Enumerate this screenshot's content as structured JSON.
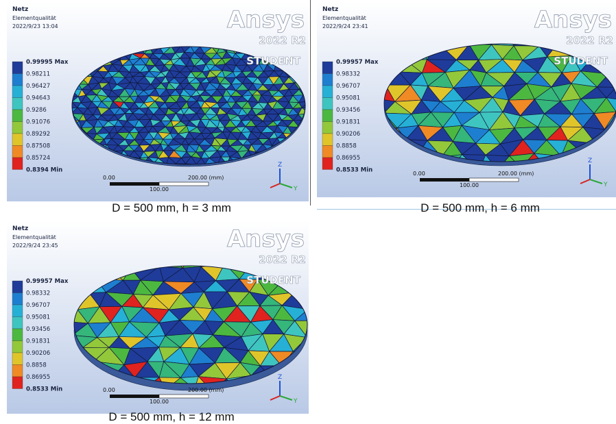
{
  "panels": [
    {
      "title": "Netz",
      "subtitle": "Elementqualität",
      "date": "2022/9/23 13:04",
      "logo": "Ansys",
      "version": "2022 R2",
      "edition": "STUDENT",
      "legend": [
        "0.99995 Max",
        "0.98211",
        "0.96427",
        "0.94643",
        "0.9286",
        "0.91076",
        "0.89292",
        "0.87508",
        "0.85724",
        "0.8394 Min"
      ],
      "scale": {
        "start": "0.00",
        "end": "200.00 (mm)",
        "mid": "100.00"
      },
      "axes": {
        "z": "Z",
        "y": "Y"
      },
      "caption": "D = 500 mm, h = 3 mm"
    },
    {
      "title": "Netz",
      "subtitle": "Elementqualität",
      "date": "2022/9/24 23:41",
      "logo": "Ansys",
      "version": "2022 R2",
      "edition": "STUDENT",
      "legend": [
        "0.99957 Max",
        "0.98332",
        "0.96707",
        "0.95081",
        "0.93456",
        "0.91831",
        "0.90206",
        "0.8858",
        "0.86955",
        "0.8533 Min"
      ],
      "scale": {
        "start": "0.00",
        "end": "200.00 (mm)",
        "mid": "100.00"
      },
      "axes": {
        "z": "Z",
        "y": "Y"
      },
      "caption": "D = 500 mm, h = 6 mm"
    },
    {
      "title": "Netz",
      "subtitle": "Elementqualität",
      "date": "2022/9/24 23:45",
      "logo": "Ansys",
      "version": "2022 R2",
      "edition": "STUDENT",
      "legend": [
        "0.99957 Max",
        "0.98332",
        "0.96707",
        "0.95081",
        "0.93456",
        "0.91831",
        "0.90206",
        "0.8858",
        "0.86955",
        "0.8533 Min"
      ],
      "scale": {
        "start": "0.00",
        "end": "200.00 (mm)",
        "mid": "100.00"
      },
      "axes": {
        "z": "Z",
        "y": "Y"
      },
      "caption": "D = 500 mm, h = 12 mm"
    }
  ]
}
